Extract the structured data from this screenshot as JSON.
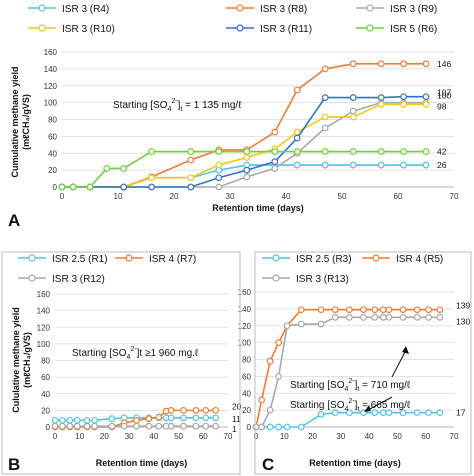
{
  "chart_data": [
    {
      "panel_label": "A",
      "type": "line",
      "xlabel": "Retention time (days)",
      "ylabel": "Cumulative methane yield (mℓCH₄/gVS)",
      "xlim": [
        0,
        70
      ],
      "ylim": [
        0,
        160
      ],
      "xticks": [
        0,
        10,
        20,
        30,
        40,
        50,
        60,
        70
      ],
      "yticks": [
        0,
        20,
        40,
        60,
        80,
        100,
        120,
        140,
        160
      ],
      "grid": "horizontal",
      "legend_position": "top",
      "annotation": {
        "prefix": "Starting [SO",
        "sub": "4",
        "sup": "2-",
        "suffix": "]",
        "sub2": "t",
        "value": " = 1 135 mg/ℓ"
      },
      "series": [
        {
          "name": "ISR 3 (R4)",
          "color": "#4FC3E8",
          "end_label": "26",
          "x": [
            0,
            2,
            5,
            11,
            16,
            23,
            28,
            33,
            38,
            42,
            47,
            52,
            57,
            61,
            65
          ],
          "y": [
            0,
            0,
            0,
            0,
            11,
            11,
            20,
            26,
            26,
            26,
            26,
            26,
            26,
            26,
            26
          ]
        },
        {
          "name": "ISR 3 (R8)",
          "color": "#F07C35",
          "end_label": "146",
          "x": [
            0,
            2,
            5,
            11,
            16,
            23,
            28,
            33,
            38,
            42,
            47,
            52,
            57,
            61,
            65
          ],
          "y": [
            0,
            0,
            0,
            0,
            12,
            32,
            44,
            44,
            65,
            115,
            140,
            146,
            146,
            146,
            146
          ]
        },
        {
          "name": "ISR 3 (R9)",
          "color": "#A9A9A9",
          "end_label": "100",
          "x": [
            0,
            2,
            5,
            11,
            16,
            23,
            28,
            33,
            38,
            42,
            47,
            52,
            57,
            61,
            65
          ],
          "y": [
            0,
            0,
            0,
            0,
            0,
            0,
            0,
            12,
            22,
            40,
            70,
            90,
            100,
            100,
            100
          ]
        },
        {
          "name": "ISR 3 (R10)",
          "color": "#F5C518",
          "end_label": "98",
          "x": [
            0,
            2,
            5,
            11,
            16,
            23,
            28,
            33,
            38,
            42,
            47,
            52,
            57,
            61,
            65
          ],
          "y": [
            0,
            0,
            0,
            0,
            11,
            11,
            26,
            35,
            45,
            65,
            83,
            83,
            98,
            98,
            98
          ]
        },
        {
          "name": "ISR 3 (R11)",
          "color": "#2E75C9",
          "end_label": "107",
          "x": [
            0,
            2,
            5,
            11,
            16,
            23,
            28,
            33,
            38,
            42,
            47,
            52,
            57,
            61,
            65
          ],
          "y": [
            0,
            0,
            0,
            0,
            0,
            0,
            11,
            20,
            30,
            58,
            106,
            106,
            106,
            107,
            107
          ]
        },
        {
          "name": "ISR 5 (R6)",
          "color": "#6FD13A",
          "end_label": "42",
          "x": [
            0,
            2,
            5,
            8,
            11,
            16,
            23,
            28,
            33,
            38,
            42,
            47,
            52,
            57,
            61,
            65
          ],
          "y": [
            0,
            0,
            0,
            22,
            22,
            42,
            42,
            42,
            42,
            42,
            42,
            42,
            42,
            42,
            42,
            42
          ]
        }
      ]
    },
    {
      "panel_label": "B",
      "type": "line",
      "xlabel": "Retention time (days)",
      "ylabel": "Cululative methane yield (mℓCH₄/gVS)",
      "xlim": [
        0,
        70
      ],
      "ylim": [
        0,
        160
      ],
      "xticks": [
        0,
        10,
        20,
        30,
        40,
        50,
        60,
        70
      ],
      "yticks": [
        0,
        20,
        40,
        60,
        80,
        100,
        120,
        140,
        160
      ],
      "grid": "horizontal",
      "legend_position": "top",
      "annotation": {
        "prefix": "Starting [SO",
        "sub": "4",
        "sup": "2-",
        "suffix": "]t",
        "sub2": "",
        "value": " ≥1 960 mg.ℓ"
      },
      "series": [
        {
          "name": "ISR 2.5 (R1)",
          "color": "#4FC3E8",
          "end_label": "11",
          "x": [
            0,
            3,
            6,
            9,
            13,
            16,
            23,
            28,
            33,
            38,
            42,
            45,
            47,
            52,
            57,
            61,
            65
          ],
          "y": [
            8,
            8,
            8,
            8,
            8,
            8,
            10,
            11,
            11,
            11,
            11,
            11,
            11,
            11,
            11,
            11,
            11
          ]
        },
        {
          "name": "ISR 4 (R7)",
          "color": "#F07C35",
          "end_label": "20",
          "x": [
            0,
            3,
            6,
            9,
            13,
            16,
            23,
            28,
            33,
            38,
            42,
            45,
            47,
            52,
            57,
            61,
            65
          ],
          "y": [
            0,
            0,
            0,
            0,
            0,
            0,
            0,
            5,
            8,
            10,
            12,
            19,
            20,
            20,
            20,
            20,
            20
          ]
        },
        {
          "name": "ISR 3 (R12)",
          "color": "#A9A9A9",
          "end_label": "1",
          "x": [
            0,
            3,
            6,
            9,
            13,
            16,
            23,
            28,
            33,
            38,
            42,
            45,
            47,
            52,
            57,
            61,
            65
          ],
          "y": [
            1,
            1,
            1,
            1,
            1,
            1,
            1,
            1,
            1,
            1,
            1,
            1,
            1,
            1,
            1,
            1,
            1
          ]
        }
      ]
    },
    {
      "panel_label": "C",
      "type": "line",
      "xlabel": "Retention time (days)",
      "ylabel": "",
      "xlim": [
        0,
        70
      ],
      "ylim": [
        0,
        160
      ],
      "xticks": [
        0,
        10,
        20,
        30,
        40,
        50,
        60,
        70
      ],
      "yticks": [
        0,
        20,
        40,
        60,
        80,
        100,
        120,
        140,
        160
      ],
      "grid": "horizontal",
      "legend_position": "top",
      "annotations": [
        {
          "prefix": "Starting [SO",
          "sub": "4",
          "sup": "2-",
          "suffix": "]",
          "sub2": "t",
          "value": " = 710 mg/ℓ"
        },
        {
          "prefix": "Starting [SO",
          "sub": "4",
          "sup": "2-",
          "suffix": "]",
          "sub2": "t",
          "value": " = 665 mg/ℓ"
        }
      ],
      "series": [
        {
          "name": "ISR 2.5 (R3)",
          "color": "#4FC3E8",
          "end_label": "17",
          "x": [
            0,
            2,
            5,
            8,
            11,
            16,
            23,
            28,
            33,
            38,
            42,
            45,
            47,
            52,
            57,
            61,
            65
          ],
          "y": [
            0,
            0,
            0,
            0,
            0,
            0,
            15,
            17,
            17,
            17,
            17,
            17,
            17,
            17,
            17,
            17,
            17
          ]
        },
        {
          "name": "ISR 4 (R5)",
          "color": "#F07C35",
          "end_label": "139",
          "x": [
            0,
            2,
            5,
            8,
            11,
            16,
            23,
            28,
            33,
            38,
            42,
            45,
            47,
            52,
            57,
            61,
            65
          ],
          "y": [
            0,
            32,
            78,
            100,
            120,
            139,
            139,
            139,
            139,
            139,
            139,
            139,
            139,
            139,
            139,
            139,
            139
          ]
        },
        {
          "name": "ISR 3 (R13)",
          "color": "#A9A9A9",
          "end_label": "130",
          "x": [
            0,
            2,
            5,
            8,
            11,
            16,
            23,
            28,
            33,
            38,
            42,
            45,
            47,
            52,
            57,
            61,
            65
          ],
          "y": [
            0,
            0,
            20,
            60,
            120,
            122,
            122,
            130,
            130,
            130,
            130,
            130,
            130,
            130,
            130,
            130,
            130
          ]
        }
      ]
    }
  ]
}
